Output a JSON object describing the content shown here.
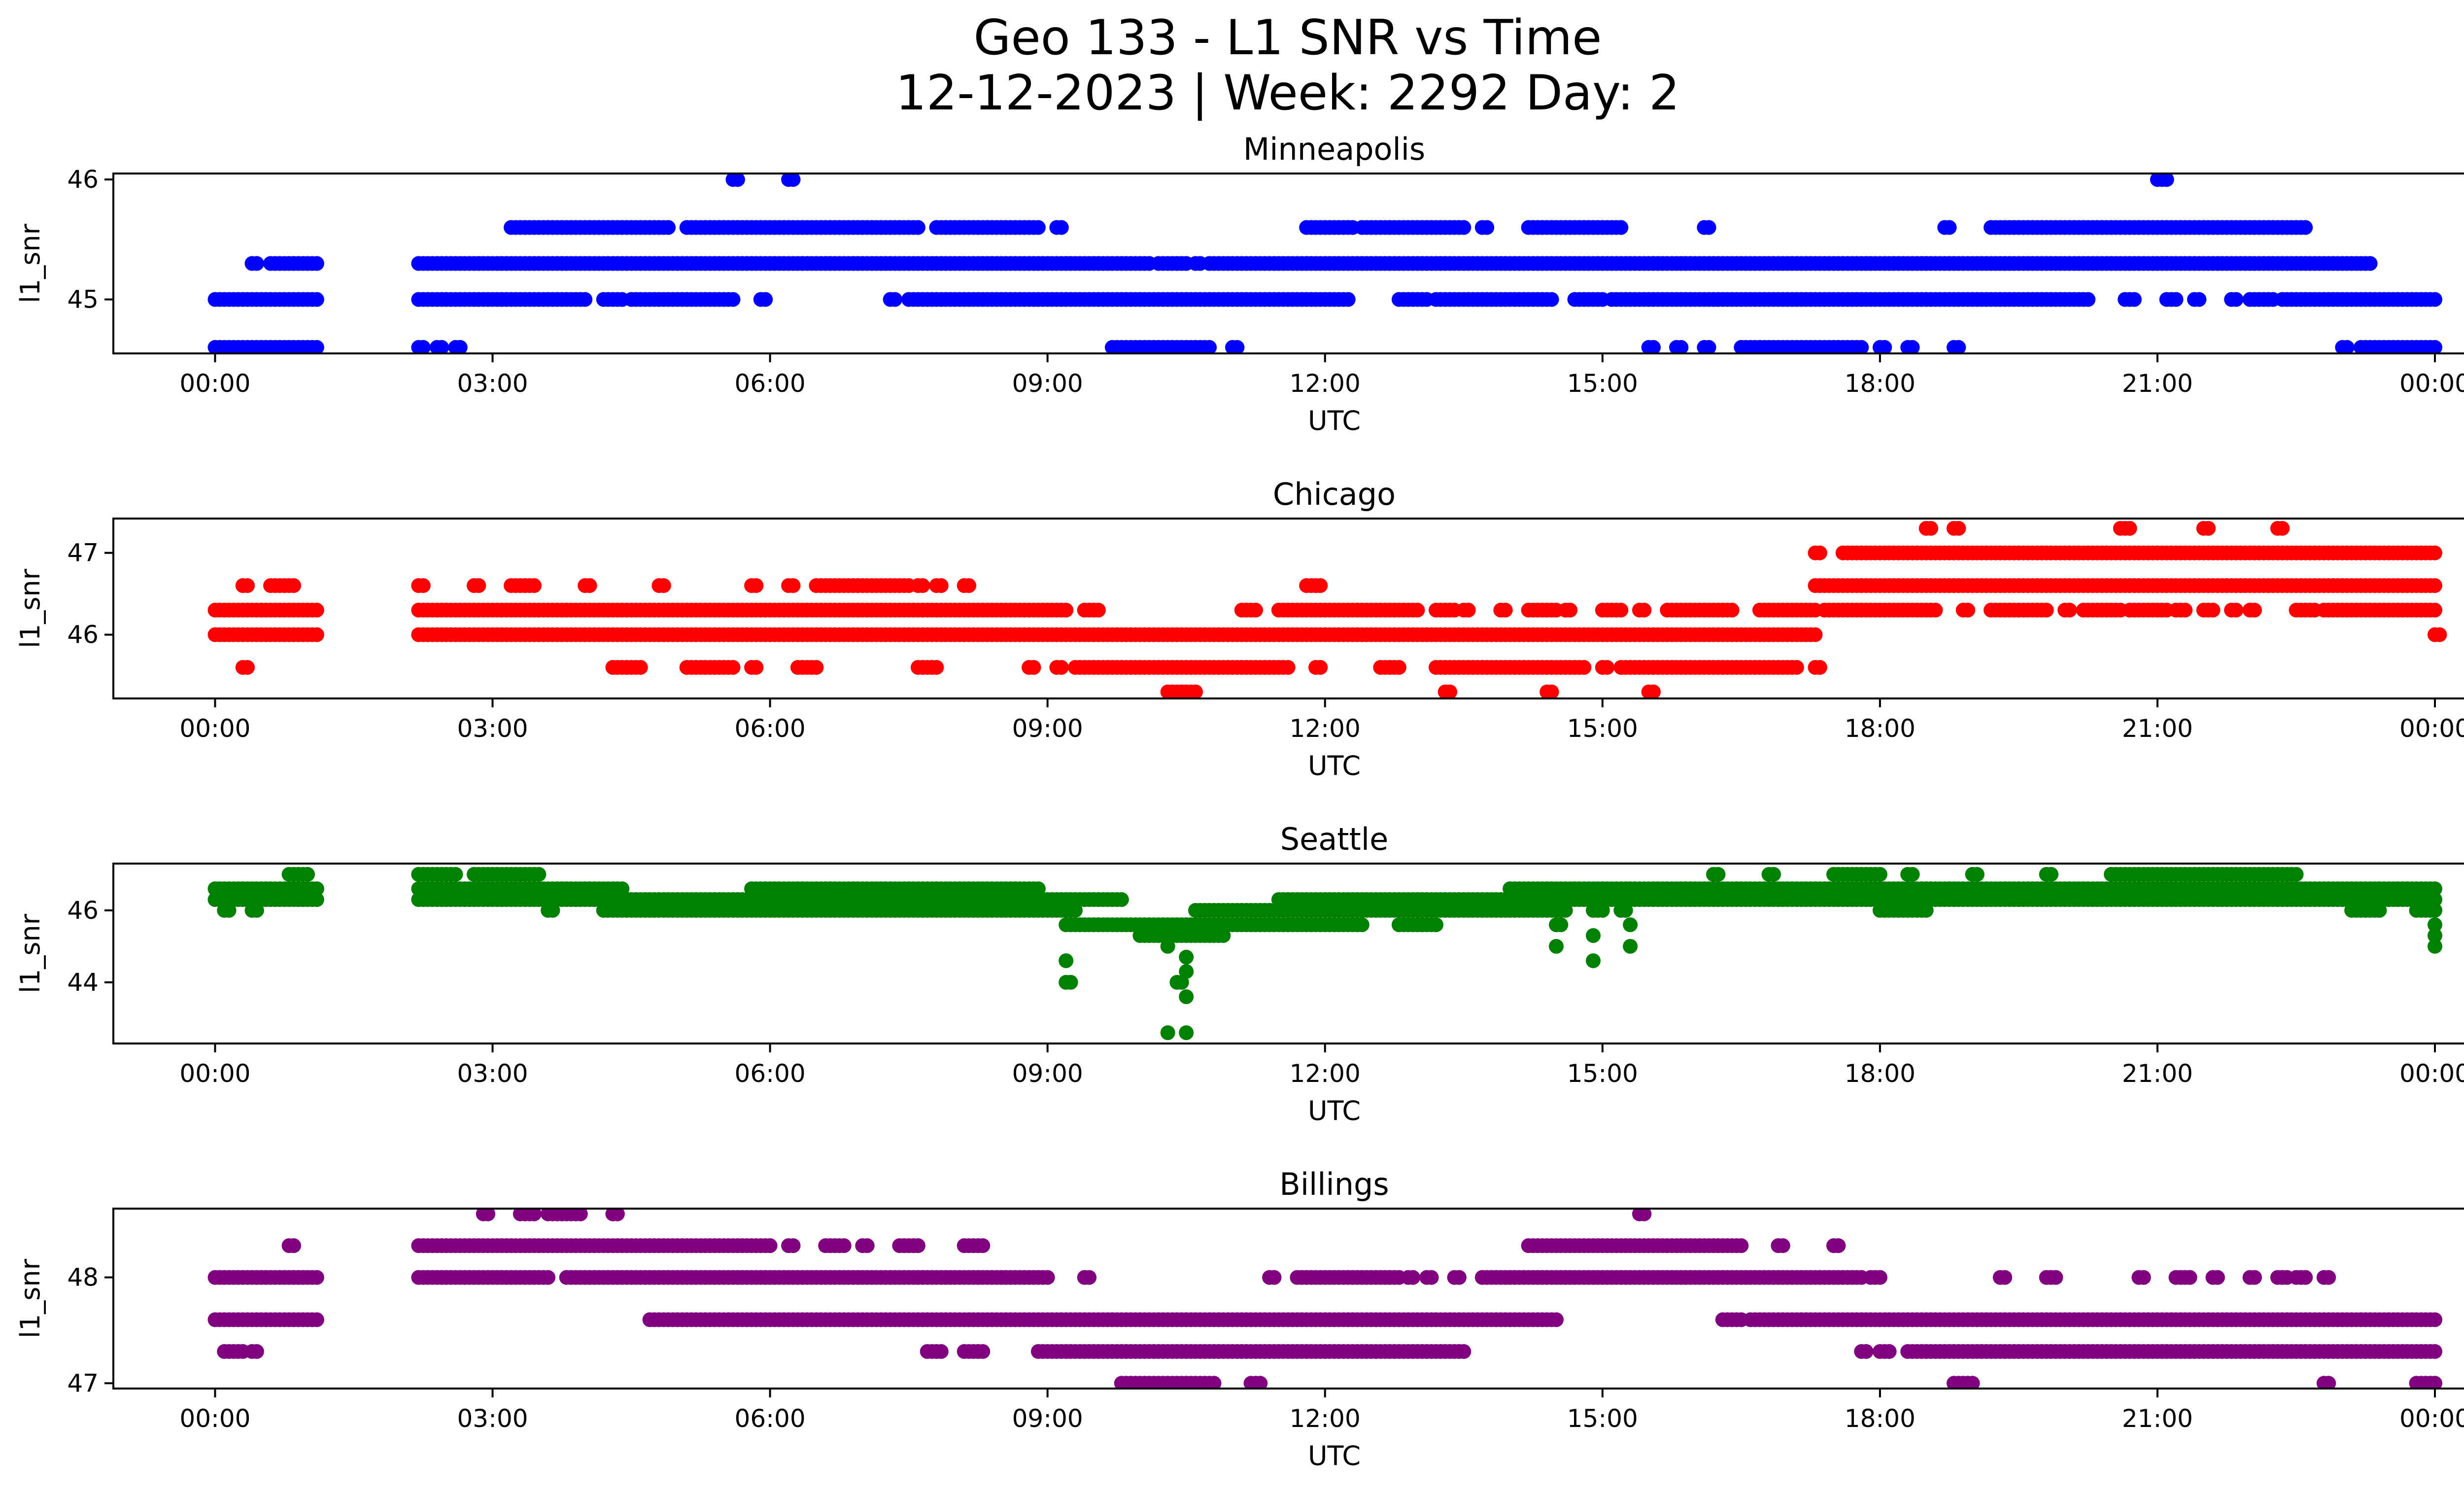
{
  "title_line1": "Geo 133 - L1 SNR vs Time",
  "title_line2": "12-12-2023 | Week: 2292 Day: 2",
  "x_tick_labels": [
    "00:00",
    "03:00",
    "06:00",
    "09:00",
    "12:00",
    "15:00",
    "18:00",
    "21:00",
    "00:00"
  ],
  "chart_data": [
    {
      "type": "scatter",
      "title": "Minneapolis",
      "xlabel": "UTC",
      "ylabel": "l1_snr",
      "color": "#0000ff",
      "xlim_hours": [
        -1.1,
        25.3
      ],
      "ylim": [
        44.55,
        46.05
      ],
      "yticks": [
        45,
        46
      ],
      "segments": [
        {
          "y": 44.6,
          "ranges": [
            [
              0.0,
              1.1
            ],
            [
              2.2,
              2.25
            ],
            [
              2.4,
              2.45
            ],
            [
              2.6,
              2.65
            ],
            [
              9.7,
              10.75
            ],
            [
              11.0,
              11.05
            ],
            [
              15.5,
              15.55
            ],
            [
              15.8,
              15.85
            ],
            [
              16.1,
              16.15
            ],
            [
              16.5,
              17.8
            ],
            [
              18.0,
              18.05
            ],
            [
              18.3,
              18.35
            ],
            [
              18.8,
              18.85
            ],
            [
              23.0,
              23.05
            ],
            [
              23.2,
              24.0
            ]
          ]
        },
        {
          "y": 45.0,
          "ranges": [
            [
              0.0,
              1.1
            ],
            [
              2.2,
              4.0
            ],
            [
              4.2,
              4.4
            ],
            [
              4.5,
              5.6
            ],
            [
              5.9,
              5.95
            ],
            [
              7.3,
              7.35
            ],
            [
              7.5,
              12.25
            ],
            [
              12.8,
              13.1
            ],
            [
              13.2,
              14.45
            ],
            [
              14.7,
              15.0
            ],
            [
              15.1,
              20.25
            ],
            [
              20.65,
              20.75
            ],
            [
              21.1,
              21.2
            ],
            [
              21.4,
              21.45
            ],
            [
              21.8,
              21.85
            ],
            [
              22.0,
              22.25
            ],
            [
              22.35,
              24.0
            ]
          ]
        },
        {
          "y": 45.3,
          "ranges": [
            [
              0.4,
              0.45
            ],
            [
              0.6,
              1.1
            ],
            [
              2.2,
              10.1
            ],
            [
              10.2,
              10.5
            ],
            [
              10.6,
              10.65
            ],
            [
              10.75,
              23.3
            ]
          ]
        },
        {
          "y": 45.6,
          "ranges": [
            [
              3.2,
              4.9
            ],
            [
              5.1,
              7.6
            ],
            [
              7.8,
              8.9
            ],
            [
              9.1,
              9.15
            ],
            [
              11.8,
              12.3
            ],
            [
              12.4,
              13.5
            ],
            [
              13.7,
              13.75
            ],
            [
              14.2,
              15.2
            ],
            [
              16.1,
              16.15
            ],
            [
              18.7,
              18.75
            ],
            [
              19.2,
              22.6
            ]
          ]
        },
        {
          "y": 46.0,
          "ranges": [
            [
              5.6,
              5.65
            ],
            [
              6.2,
              6.25
            ],
            [
              21.0,
              21.1
            ]
          ]
        }
      ]
    },
    {
      "type": "scatter",
      "title": "Chicago",
      "xlabel": "UTC",
      "ylabel": "l1_snr",
      "color": "#ff0000",
      "xlim_hours": [
        -1.1,
        25.3
      ],
      "ylim": [
        45.22,
        47.42
      ],
      "yticks": [
        46,
        47
      ],
      "segments": [
        {
          "y": 45.3,
          "ranges": [
            [
              10.3,
              10.6
            ],
            [
              13.3,
              13.35
            ],
            [
              14.4,
              14.45
            ],
            [
              15.5,
              15.55
            ]
          ]
        },
        {
          "y": 45.6,
          "ranges": [
            [
              0.3,
              0.35
            ],
            [
              4.3,
              4.6
            ],
            [
              5.1,
              5.6
            ],
            [
              5.8,
              5.85
            ],
            [
              6.3,
              6.5
            ],
            [
              7.6,
              7.8
            ],
            [
              8.8,
              8.85
            ],
            [
              9.1,
              9.15
            ],
            [
              9.3,
              11.6
            ],
            [
              11.9,
              11.95
            ],
            [
              12.6,
              12.8
            ],
            [
              13.2,
              14.8
            ],
            [
              15.0,
              15.05
            ],
            [
              15.2,
              17.1
            ],
            [
              17.3,
              17.35
            ]
          ]
        },
        {
          "y": 46.0,
          "ranges": [
            [
              0.0,
              1.1
            ],
            [
              2.2,
              17.3
            ],
            [
              24.0,
              24.05
            ]
          ]
        },
        {
          "y": 46.3,
          "ranges": [
            [
              0.0,
              1.1
            ],
            [
              2.2,
              9.2
            ],
            [
              9.4,
              9.55
            ],
            [
              11.1,
              11.25
            ],
            [
              11.5,
              13.0
            ],
            [
              13.2,
              13.4
            ],
            [
              13.5,
              13.55
            ],
            [
              13.9,
              13.95
            ],
            [
              14.2,
              14.5
            ],
            [
              14.6,
              14.65
            ],
            [
              15.0,
              15.2
            ],
            [
              15.4,
              15.45
            ],
            [
              15.7,
              16.4
            ],
            [
              16.7,
              17.3
            ],
            [
              17.4,
              18.6
            ],
            [
              18.9,
              18.95
            ],
            [
              19.2,
              19.8
            ],
            [
              20.0,
              20.05
            ],
            [
              20.2,
              20.6
            ],
            [
              20.7,
              21.1
            ],
            [
              21.2,
              21.3
            ],
            [
              21.5,
              21.6
            ],
            [
              21.8,
              21.85
            ],
            [
              22.0,
              22.05
            ],
            [
              22.5,
              22.7
            ],
            [
              22.8,
              24.0
            ]
          ]
        },
        {
          "y": 46.6,
          "ranges": [
            [
              0.3,
              0.35
            ],
            [
              0.6,
              0.85
            ],
            [
              2.2,
              2.25
            ],
            [
              2.8,
              2.85
            ],
            [
              3.2,
              3.45
            ],
            [
              4.0,
              4.05
            ],
            [
              4.8,
              4.85
            ],
            [
              5.8,
              5.85
            ],
            [
              6.2,
              6.25
            ],
            [
              6.5,
              7.5
            ],
            [
              7.6,
              7.65
            ],
            [
              7.8,
              7.85
            ],
            [
              8.1,
              8.15
            ],
            [
              11.8,
              11.95
            ],
            [
              17.3,
              24.0
            ]
          ]
        },
        {
          "y": 47.0,
          "ranges": [
            [
              17.3,
              17.35
            ],
            [
              17.6,
              24.0
            ]
          ]
        },
        {
          "y": 47.3,
          "ranges": [
            [
              18.5,
              18.55
            ],
            [
              18.8,
              18.85
            ],
            [
              20.6,
              20.7
            ],
            [
              21.5,
              21.55
            ],
            [
              22.3,
              22.35
            ]
          ]
        }
      ]
    },
    {
      "type": "scatter",
      "title": "Seattle",
      "xlabel": "UTC",
      "ylabel": "l1_snr",
      "color": "#008000",
      "xlim_hours": [
        -1.1,
        25.3
      ],
      "ylim": [
        42.3,
        47.3
      ],
      "yticks": [
        44,
        46
      ],
      "segments": [
        {
          "y": 46.6,
          "ranges": [
            [
              0.0,
              1.1
            ],
            [
              2.2,
              4.4
            ],
            [
              5.8,
              8.9
            ],
            [
              14.0,
              24.0
            ]
          ]
        },
        {
          "y": 46.3,
          "ranges": [
            [
              0.0,
              1.1
            ],
            [
              2.2,
              9.8
            ],
            [
              11.5,
              24.0
            ]
          ]
        },
        {
          "y": 46.0,
          "ranges": [
            [
              0.1,
              0.15
            ],
            [
              0.4,
              0.45
            ],
            [
              3.6,
              3.65
            ],
            [
              4.2,
              9.3
            ],
            [
              10.6,
              14.6
            ],
            [
              14.9,
              15.0
            ],
            [
              15.2,
              15.25
            ],
            [
              18.0,
              18.5
            ],
            [
              23.1,
              23.4
            ],
            [
              23.8,
              24.0
            ]
          ]
        },
        {
          "y": 45.6,
          "ranges": [
            [
              9.2,
              12.4
            ],
            [
              12.8,
              13.2
            ],
            [
              14.5,
              14.55
            ]
          ]
        },
        {
          "y": 45.3,
          "ranges": [
            [
              10.0,
              10.9
            ]
          ]
        },
        {
          "y": 47.0,
          "ranges": [
            [
              0.8,
              1.0
            ],
            [
              2.2,
              2.6
            ],
            [
              2.8,
              3.5
            ],
            [
              16.2,
              16.25
            ],
            [
              16.8,
              16.85
            ],
            [
              17.5,
              18.0
            ],
            [
              18.3,
              18.35
            ],
            [
              19.0,
              19.05
            ],
            [
              19.8,
              19.85
            ],
            [
              20.5,
              22.5
            ]
          ]
        },
        {
          "y": 44.0,
          "ranges": [
            [
              9.2,
              9.25
            ],
            [
              10.4,
              10.45
            ]
          ]
        }
      ],
      "points": [
        [
          9.2,
          44.6
        ],
        [
          10.3,
          45.0
        ],
        [
          10.3,
          42.6
        ],
        [
          10.5,
          42.6
        ],
        [
          10.5,
          44.7
        ],
        [
          10.5,
          44.3
        ],
        [
          10.5,
          43.6
        ],
        [
          14.5,
          45.0
        ],
        [
          14.9,
          45.3
        ],
        [
          14.9,
          44.6
        ],
        [
          15.3,
          45.0
        ],
        [
          15.3,
          45.6
        ],
        [
          24.0,
          45.3
        ],
        [
          24.0,
          45.0
        ],
        [
          24.0,
          45.6
        ]
      ]
    },
    {
      "type": "scatter",
      "title": "Billings",
      "xlabel": "UTC",
      "ylabel": "l1_snr",
      "color": "#800080",
      "xlim_hours": [
        -1.1,
        25.3
      ],
      "ylim": [
        46.95,
        48.65
      ],
      "yticks": [
        47,
        48
      ],
      "segments": [
        {
          "y": 47.0,
          "ranges": [
            [
              9.8,
              10.8
            ],
            [
              11.2,
              11.3
            ],
            [
              18.8,
              19.0
            ],
            [
              22.8,
              22.85
            ],
            [
              23.8,
              24.0
            ]
          ]
        },
        {
          "y": 47.3,
          "ranges": [
            [
              0.1,
              0.3
            ],
            [
              0.4,
              0.45
            ],
            [
              7.7,
              7.85
            ],
            [
              8.1,
              8.3
            ],
            [
              8.9,
              13.5
            ],
            [
              17.8,
              17.85
            ],
            [
              18.0,
              18.1
            ],
            [
              18.3,
              24.0
            ]
          ]
        },
        {
          "y": 47.6,
          "ranges": [
            [
              0.0,
              1.1
            ],
            [
              4.7,
              14.5
            ],
            [
              16.3,
              16.5
            ],
            [
              16.6,
              24.0
            ]
          ]
        },
        {
          "y": 48.0,
          "ranges": [
            [
              0.0,
              1.1
            ],
            [
              2.2,
              3.6
            ],
            [
              3.8,
              9.0
            ],
            [
              9.4,
              9.45
            ],
            [
              11.4,
              11.45
            ],
            [
              11.7,
              12.8
            ],
            [
              12.9,
              12.95
            ],
            [
              13.1,
              13.15
            ],
            [
              13.4,
              13.45
            ],
            [
              13.7,
              17.8
            ],
            [
              17.9,
              18.0
            ],
            [
              19.3,
              19.35
            ],
            [
              19.8,
              19.9
            ],
            [
              20.8,
              20.85
            ],
            [
              21.2,
              21.35
            ],
            [
              21.6,
              21.65
            ],
            [
              22.0,
              22.05
            ],
            [
              22.3,
              22.4
            ],
            [
              22.5,
              22.6
            ],
            [
              22.8,
              22.85
            ]
          ]
        },
        {
          "y": 48.3,
          "ranges": [
            [
              0.8,
              0.85
            ],
            [
              2.2,
              6.0
            ],
            [
              6.2,
              6.25
            ],
            [
              6.6,
              6.8
            ],
            [
              7.0,
              7.05
            ],
            [
              7.4,
              7.6
            ],
            [
              8.1,
              8.3
            ],
            [
              14.2,
              16.5
            ],
            [
              16.9,
              16.95
            ],
            [
              17.5,
              17.55
            ]
          ]
        },
        {
          "y": 48.6,
          "ranges": [
            [
              2.9,
              2.95
            ],
            [
              3.3,
              3.45
            ],
            [
              3.6,
              3.95
            ],
            [
              4.3,
              4.35
            ],
            [
              15.4,
              15.45
            ]
          ]
        }
      ]
    }
  ]
}
